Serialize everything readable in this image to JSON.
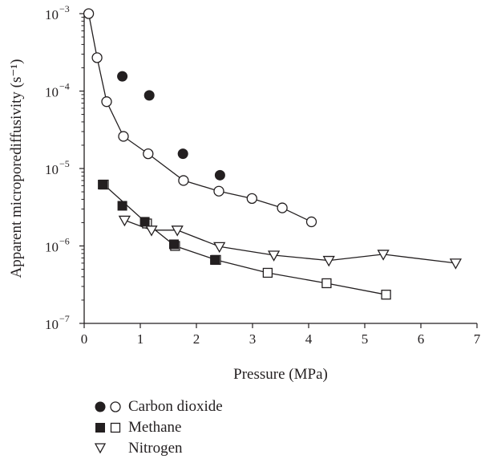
{
  "chart_data": {
    "type": "scatter",
    "xlabel": "Pressure (MPa)",
    "ylabel": "Apparent microporediffusivity (s⁻¹)",
    "xlim": [
      0,
      7
    ],
    "ylim": [
      1e-07,
      0.001
    ],
    "yscale": "log",
    "xticks": [
      "0",
      "1",
      "2",
      "3",
      "4",
      "5",
      "6",
      "7"
    ],
    "yticks": [
      {
        "base": "10",
        "exp": "−7"
      },
      {
        "base": "10",
        "exp": "−6"
      },
      {
        "base": "10",
        "exp": "−5"
      },
      {
        "base": "10",
        "exp": "−4"
      },
      {
        "base": "10",
        "exp": "−3"
      }
    ],
    "grid": false,
    "legend_position": "bottom-left",
    "series": [
      {
        "name": "Carbon dioxide",
        "marker": "filled-circle",
        "connected": false,
        "x": [
          0.68,
          1.16,
          1.76,
          2.42
        ],
        "y": [
          0.000155,
          8.8e-05,
          1.55e-05,
          8.2e-06
        ]
      },
      {
        "name": "Carbon dioxide",
        "marker": "open-circle",
        "connected": true,
        "x": [
          0.08,
          0.23,
          0.4,
          0.7,
          1.14,
          1.77,
          2.4,
          2.99,
          3.53,
          4.05
        ],
        "y": [
          0.001,
          0.00027,
          7.3e-05,
          2.6e-05,
          1.55e-05,
          7e-06,
          5.1e-06,
          4.1e-06,
          3.1e-06,
          2.05e-06
        ]
      },
      {
        "name": "Methane",
        "marker": "filled-square",
        "connected": false,
        "x": [
          0.33,
          0.68,
          1.08,
          1.6,
          2.33
        ],
        "y": [
          6.2e-06,
          3.3e-06,
          2.05e-06,
          1.05e-06,
          6.6e-07
        ]
      },
      {
        "name": "Methane",
        "marker": "open-square",
        "connected": true,
        "x": [
          0.35,
          1.12,
          1.62,
          2.35,
          3.27,
          4.32,
          5.38
        ],
        "y": [
          6.2e-06,
          1.95e-06,
          1e-06,
          6.6e-07,
          4.5e-07,
          3.3e-07,
          2.35e-07
        ]
      },
      {
        "name": "Nitrogen",
        "marker": "open-triangle-down",
        "connected": true,
        "x": [
          0.72,
          1.2,
          1.66,
          2.41,
          3.38,
          4.36,
          5.33,
          6.62
        ],
        "y": [
          2.15e-06,
          1.6e-06,
          1.6e-06,
          9.8e-07,
          7.6e-07,
          6.5e-07,
          7.8e-07,
          6e-07
        ]
      }
    ],
    "legend": [
      {
        "label": "Carbon dioxide",
        "markers": [
          "filled-circle",
          "open-circle"
        ]
      },
      {
        "label": "Methane",
        "markers": [
          "filled-square",
          "open-square"
        ]
      },
      {
        "label": "Nitrogen",
        "markers": [
          "open-triangle-down"
        ]
      }
    ]
  }
}
